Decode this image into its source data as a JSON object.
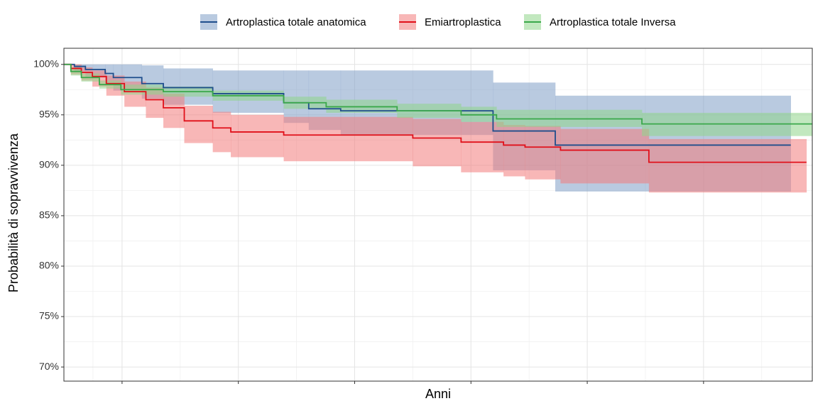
{
  "chart_data": {
    "type": "survival",
    "xlabel": "Anni",
    "ylabel": "Probabilità di sopravvivenza",
    "xlim": [
      0,
      12.87
    ],
    "xticks": [
      1,
      3,
      5,
      7,
      9,
      11
    ],
    "ylim": [
      68.6,
      101.6
    ],
    "yticks": [
      {
        "value": 70,
        "label": "70%"
      },
      {
        "value": 75,
        "label": "75%"
      },
      {
        "value": 80,
        "label": "80%"
      },
      {
        "value": 85,
        "label": "85%"
      },
      {
        "value": 90,
        "label": "90%"
      },
      {
        "value": 95,
        "label": "95%"
      },
      {
        "value": 100,
        "label": "100%"
      }
    ],
    "grid": true,
    "legend": "top",
    "series": [
      {
        "name": "Artroplastica totale anatomica",
        "color": "#1f4e8c",
        "band_color": "#7f9fc6",
        "x": [
          0,
          0.18,
          0.37,
          0.71,
          0.85,
          1.34,
          1.71,
          2.56,
          3.78,
          4.21,
          4.76,
          7.38,
          8.45,
          12.5
        ],
        "values": [
          100,
          99.8,
          99.5,
          99.1,
          98.7,
          98.1,
          97.7,
          97.1,
          96.2,
          95.6,
          95.4,
          93.4,
          92.0,
          92.0
        ],
        "upper": [
          100,
          100,
          100,
          100,
          100,
          99.9,
          99.6,
          99.4,
          99.4,
          99.4,
          99.4,
          98.2,
          96.9,
          96.9
        ],
        "lower": [
          100,
          99.2,
          98.7,
          98.0,
          97.4,
          96.6,
          96.0,
          95.2,
          94.2,
          93.5,
          93.0,
          89.5,
          87.4,
          87.4
        ]
      },
      {
        "name": "Emiartroplastica",
        "color": "#e0101a",
        "band_color": "#f37b7b",
        "x": [
          0,
          0.12,
          0.3,
          0.49,
          0.73,
          1.04,
          1.41,
          1.71,
          2.07,
          2.56,
          2.87,
          3.78,
          6.0,
          6.83,
          7.56,
          7.93,
          8.54,
          10.06,
          12.77
        ],
        "values": [
          100,
          99.6,
          99.2,
          98.8,
          98.1,
          97.3,
          96.5,
          95.7,
          94.4,
          93.7,
          93.3,
          93.0,
          92.7,
          92.3,
          92.0,
          91.8,
          91.5,
          90.3,
          90.3
        ],
        "upper": [
          100,
          100,
          99.7,
          99.4,
          98.9,
          98.3,
          97.7,
          97.1,
          95.9,
          95.3,
          95.0,
          94.8,
          94.6,
          94.3,
          94.0,
          93.9,
          93.6,
          92.6,
          92.6
        ],
        "lower": [
          100,
          99.0,
          98.4,
          97.8,
          96.9,
          95.8,
          94.7,
          93.7,
          92.2,
          91.3,
          90.8,
          90.4,
          89.9,
          89.3,
          88.9,
          88.6,
          88.2,
          87.3,
          87.3
        ]
      },
      {
        "name": "Artroplastica totale Inversa",
        "color": "#3aa84a",
        "band_color": "#8fd68a",
        "x": [
          0,
          0.12,
          0.3,
          0.61,
          0.98,
          1.71,
          2.56,
          3.78,
          4.51,
          5.73,
          6.83,
          7.44,
          9.94,
          12.87
        ],
        "values": [
          100,
          99.3,
          98.7,
          98.0,
          97.5,
          97.3,
          96.9,
          96.2,
          95.8,
          95.4,
          95.0,
          94.6,
          94.1,
          94.1
        ],
        "upper": [
          100,
          99.7,
          99.1,
          98.4,
          98.0,
          97.8,
          97.4,
          96.8,
          96.5,
          96.1,
          95.8,
          95.5,
          95.2,
          95.2
        ],
        "lower": [
          100,
          98.9,
          98.3,
          97.6,
          97.0,
          96.8,
          96.4,
          95.6,
          95.2,
          94.7,
          94.3,
          93.8,
          92.9,
          92.9
        ]
      }
    ]
  }
}
